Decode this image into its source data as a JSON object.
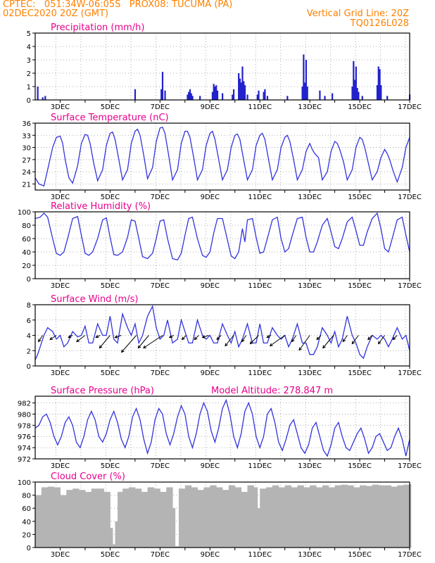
{
  "header": {
    "line1": "CPTEC:   051:34W-06:05S   PROX08: TUCUMA (PA)",
    "line2": "02DEC2020 20Z (GMT)",
    "grid_note": "Vertical Grid Line: 20Z",
    "run_id": "TQ0126L028",
    "color": "#ff8000"
  },
  "colors": {
    "title": "#e8008c",
    "line": "#3333dd",
    "bar": "#2222cc",
    "cloud": "#b4b4b4",
    "axis": "#000000"
  },
  "x_ticks": [
    "3DEC",
    "5DEC",
    "7DEC",
    "9DEC",
    "11DEC",
    "13DEC",
    "15DEC",
    "17DEC"
  ],
  "chart_data": [
    {
      "type": "bar",
      "title": "Precipitation (mm/h)",
      "ylim": [
        0,
        5
      ],
      "yticks": [
        "0",
        "1",
        "2",
        "3",
        "4",
        "5"
      ],
      "x_days": [
        2.1,
        2.3,
        2.4,
        6.0,
        7.05,
        7.1,
        7.2,
        8.1,
        8.15,
        8.2,
        8.25,
        8.3,
        8.6,
        9.1,
        9.15,
        9.2,
        9.25,
        9.3,
        9.5,
        9.9,
        9.95,
        10.15,
        10.2,
        10.25,
        10.3,
        10.35,
        10.4,
        10.5,
        10.9,
        10.95,
        11.15,
        11.2,
        11.3,
        12.1,
        12.7,
        12.75,
        12.8,
        12.85,
        12.9,
        13.4,
        13.6,
        13.9,
        14.7,
        14.75,
        14.8,
        14.85,
        14.9,
        14.95,
        15.1,
        15.7,
        15.75,
        15.8,
        15.85,
        16.1,
        17.0
      ],
      "values": [
        1.0,
        0.2,
        0.3,
        0.8,
        0.8,
        2.1,
        0.7,
        0.4,
        0.6,
        0.8,
        0.5,
        0.3,
        0.3,
        0.6,
        1.2,
        1.0,
        1.1,
        0.7,
        0.5,
        0.4,
        0.8,
        2.0,
        1.6,
        1.3,
        2.5,
        1.4,
        1.1,
        0.4,
        0.4,
        0.7,
        0.6,
        0.8,
        0.3,
        0.3,
        1.0,
        3.4,
        1.3,
        3.0,
        1.0,
        0.7,
        0.3,
        0.5,
        1.0,
        2.9,
        1.5,
        2.5,
        0.9,
        0.6,
        0.3,
        1.1,
        2.5,
        2.3,
        1.1,
        0.3,
        0.4
      ]
    },
    {
      "type": "line",
      "title": "Surface Temperature (nC)",
      "ylim": [
        19.5,
        36
      ],
      "yticks": [
        "21",
        "24",
        "27",
        "30",
        "33",
        "36"
      ],
      "x_days": [
        2.0,
        2.15,
        2.35,
        2.5,
        2.7,
        2.85,
        3.0,
        3.1,
        3.2,
        3.35,
        3.5,
        3.7,
        3.85,
        4.0,
        4.1,
        4.2,
        4.35,
        4.5,
        4.7,
        4.85,
        5.0,
        5.1,
        5.2,
        5.35,
        5.5,
        5.7,
        5.85,
        6.0,
        6.1,
        6.2,
        6.35,
        6.5,
        6.7,
        6.85,
        7.0,
        7.1,
        7.2,
        7.35,
        7.5,
        7.7,
        7.85,
        8.0,
        8.1,
        8.2,
        8.35,
        8.5,
        8.7,
        8.85,
        9.0,
        9.1,
        9.2,
        9.35,
        9.5,
        9.7,
        9.85,
        10.0,
        10.1,
        10.2,
        10.35,
        10.5,
        10.7,
        10.85,
        11.0,
        11.1,
        11.2,
        11.35,
        11.5,
        11.7,
        11.85,
        12.0,
        12.1,
        12.2,
        12.35,
        12.5,
        12.7,
        12.85,
        13.0,
        13.1,
        13.2,
        13.35,
        13.5,
        13.7,
        13.85,
        14.0,
        14.1,
        14.2,
        14.35,
        14.5,
        14.7,
        14.85,
        15.0,
        15.1,
        15.2,
        15.35,
        15.5,
        15.7,
        15.85,
        16.0,
        16.1,
        16.2,
        16.35,
        16.5,
        16.7,
        16.85,
        17.0
      ],
      "values": [
        22.5,
        21.0,
        20.5,
        24.5,
        30.0,
        32.5,
        32.8,
        31.0,
        27.0,
        22.5,
        21.2,
        25.5,
        31.0,
        33.2,
        33.0,
        31.0,
        26.0,
        21.8,
        24.5,
        30.5,
        33.5,
        33.8,
        32.0,
        27.0,
        22.0,
        24.5,
        31.0,
        34.0,
        34.5,
        33.0,
        28.0,
        22.3,
        25.0,
        31.5,
        34.8,
        35.0,
        33.5,
        28.0,
        22.0,
        24.5,
        31.0,
        34.0,
        34.0,
        32.5,
        27.5,
        22.0,
        24.5,
        30.5,
        33.5,
        34.0,
        32.0,
        27.0,
        22.0,
        24.5,
        30.0,
        33.0,
        33.3,
        32.0,
        27.0,
        22.0,
        24.5,
        30.5,
        33.0,
        33.5,
        32.0,
        27.0,
        22.0,
        24.5,
        30.0,
        32.5,
        33.0,
        31.5,
        27.0,
        22.0,
        24.5,
        29.0,
        31.0,
        29.5,
        28.5,
        27.5,
        22.0,
        24.0,
        29.0,
        31.5,
        31.0,
        29.5,
        26.5,
        22.0,
        24.5,
        30.0,
        32.5,
        32.0,
        30.0,
        26.0,
        22.0,
        24.0,
        27.5,
        29.5,
        28.5,
        27.0,
        24.0,
        21.5,
        25.0,
        30.0,
        32.5
      ]
    },
    {
      "type": "line",
      "title": "Relative Humidity (%)",
      "ylim": [
        0,
        100
      ],
      "yticks": [
        "0",
        "20",
        "40",
        "60",
        "80",
        "100"
      ],
      "x_days": [
        2.0,
        2.2,
        2.35,
        2.5,
        2.7,
        2.85,
        3.0,
        3.15,
        3.3,
        3.5,
        3.7,
        3.85,
        4.0,
        4.15,
        4.3,
        4.5,
        4.7,
        4.85,
        5.0,
        5.15,
        5.3,
        5.5,
        5.7,
        5.85,
        6.0,
        6.15,
        6.3,
        6.5,
        6.7,
        6.85,
        7.0,
        7.15,
        7.3,
        7.5,
        7.7,
        7.85,
        8.0,
        8.15,
        8.3,
        8.5,
        8.7,
        8.85,
        9.0,
        9.15,
        9.3,
        9.5,
        9.7,
        9.85,
        10.0,
        10.15,
        10.3,
        10.4,
        10.5,
        10.7,
        10.85,
        11.0,
        11.15,
        11.3,
        11.5,
        11.7,
        11.85,
        12.0,
        12.15,
        12.3,
        12.5,
        12.7,
        12.85,
        13.0,
        13.15,
        13.3,
        13.5,
        13.7,
        13.85,
        14.0,
        14.15,
        14.3,
        14.5,
        14.7,
        14.85,
        15.0,
        15.15,
        15.3,
        15.5,
        15.7,
        15.85,
        16.0,
        16.15,
        16.3,
        16.5,
        16.7,
        16.85,
        17.0
      ],
      "values": [
        90,
        92,
        98,
        92,
        60,
        38,
        35,
        40,
        60,
        90,
        93,
        65,
        38,
        35,
        40,
        60,
        88,
        91,
        62,
        36,
        35,
        40,
        62,
        88,
        86,
        60,
        33,
        30,
        38,
        60,
        86,
        88,
        60,
        30,
        28,
        38,
        65,
        90,
        92,
        60,
        35,
        32,
        40,
        68,
        90,
        90,
        58,
        34,
        30,
        40,
        75,
        55,
        88,
        90,
        62,
        38,
        40,
        60,
        88,
        92,
        60,
        40,
        45,
        65,
        90,
        92,
        62,
        40,
        40,
        55,
        80,
        90,
        70,
        48,
        45,
        60,
        85,
        92,
        72,
        50,
        50,
        70,
        90,
        98,
        75,
        45,
        40,
        60,
        88,
        92,
        65,
        40
      ]
    },
    {
      "type": "line",
      "title": "Surface Wind (m/s)",
      "ylim": [
        0,
        8
      ],
      "yticks": [
        "0",
        "2",
        "4",
        "6",
        "8"
      ],
      "x_days": [
        2.0,
        2.1,
        2.2,
        2.35,
        2.5,
        2.7,
        2.85,
        3.0,
        3.15,
        3.3,
        3.5,
        3.7,
        3.85,
        4.0,
        4.15,
        4.3,
        4.5,
        4.7,
        4.85,
        5.0,
        5.15,
        5.3,
        5.5,
        5.7,
        5.85,
        6.0,
        6.15,
        6.3,
        6.5,
        6.7,
        6.85,
        7.0,
        7.15,
        7.3,
        7.5,
        7.7,
        7.85,
        8.0,
        8.15,
        8.3,
        8.5,
        8.7,
        8.85,
        9.0,
        9.15,
        9.3,
        9.5,
        9.7,
        9.85,
        10.0,
        10.15,
        10.3,
        10.5,
        10.7,
        10.85,
        11.0,
        11.15,
        11.3,
        11.5,
        11.7,
        11.85,
        12.0,
        12.15,
        12.3,
        12.5,
        12.7,
        12.85,
        13.0,
        13.15,
        13.3,
        13.5,
        13.7,
        13.85,
        14.0,
        14.15,
        14.3,
        14.5,
        14.7,
        14.85,
        15.0,
        15.15,
        15.3,
        15.5,
        15.7,
        15.85,
        16.0,
        16.15,
        16.3,
        16.5,
        16.7,
        16.85,
        17.0
      ],
      "values": [
        0.8,
        1.5,
        2.5,
        4.0,
        5.0,
        4.5,
        3.5,
        4.0,
        2.5,
        3.0,
        4.5,
        3.8,
        4.0,
        5.2,
        3.0,
        3.0,
        5.5,
        4.0,
        4.0,
        6.5,
        3.5,
        3.0,
        6.8,
        5.0,
        4.0,
        5.5,
        3.0,
        4.0,
        6.5,
        7.8,
        5.0,
        3.5,
        4.0,
        6.0,
        3.0,
        3.5,
        6.0,
        4.5,
        3.0,
        3.0,
        6.0,
        4.0,
        3.5,
        4.0,
        3.0,
        3.0,
        5.5,
        4.0,
        3.0,
        4.5,
        2.5,
        3.5,
        5.5,
        3.0,
        3.0,
        5.5,
        3.0,
        3.0,
        5.0,
        4.0,
        3.5,
        4.0,
        2.5,
        3.5,
        5.5,
        3.0,
        3.0,
        1.5,
        1.5,
        2.5,
        5.0,
        4.0,
        3.0,
        4.5,
        2.5,
        3.5,
        6.5,
        4.0,
        3.0,
        1.5,
        1.0,
        2.5,
        4.0,
        3.5,
        4.0,
        3.5,
        2.5,
        3.5,
        5.0,
        3.5,
        4.0,
        2.0
      ],
      "vectors": {
        "x_days": [
          2.3,
          2.85,
          3.5,
          4.0,
          4.6,
          5.0,
          5.45,
          6.05,
          6.55,
          7.1,
          7.55,
          8.05,
          8.55,
          8.95,
          9.45,
          9.95,
          10.45,
          10.95,
          11.45,
          12.0,
          12.45,
          13.0,
          13.45,
          13.95,
          14.5,
          14.95,
          15.5,
          16.0,
          16.5
        ],
        "u": [
          -1.0,
          -1.5,
          -1.0,
          -2.0,
          -1.0,
          -2.5,
          -1.5,
          -3.5,
          -2.5,
          -4.5,
          -1.0,
          -1.0,
          -1.0,
          -1.5,
          -1.0,
          -2.0,
          -1.0,
          -2.0,
          -1.0,
          -3.5,
          -1.0,
          -2.5,
          -1.0,
          -2.5,
          -1.0,
          -1.5,
          -1.0,
          -1.5,
          -1.0
        ],
        "v": [
          -1.5,
          -1.0,
          -0.5,
          -1.5,
          -0.5,
          -3.0,
          -0.5,
          -4.0,
          -3.0,
          -3.0,
          -0.5,
          -1.0,
          -1.0,
          -0.5,
          -1.0,
          -2.5,
          -1.5,
          -2.0,
          -0.5,
          -2.5,
          -1.5,
          -3.5,
          -1.0,
          -3.0,
          -1.5,
          -2.0,
          -1.0,
          -2.0,
          -1.0
        ]
      }
    },
    {
      "type": "line",
      "title": "Surface Pressure (hPa)",
      "annotation": "Model Altitude: 278.847 m",
      "ylim": [
        972,
        983.2
      ],
      "yticks": [
        "972",
        "974",
        "976",
        "978",
        "980",
        "982"
      ],
      "x_days": [
        2.0,
        2.15,
        2.3,
        2.45,
        2.6,
        2.75,
        2.9,
        3.05,
        3.2,
        3.35,
        3.5,
        3.65,
        3.8,
        3.95,
        4.1,
        4.25,
        4.4,
        4.55,
        4.7,
        4.85,
        5.0,
        5.15,
        5.3,
        5.45,
        5.6,
        5.75,
        5.9,
        6.05,
        6.2,
        6.35,
        6.5,
        6.65,
        6.8,
        6.95,
        7.1,
        7.25,
        7.4,
        7.55,
        7.7,
        7.85,
        8.0,
        8.15,
        8.3,
        8.45,
        8.6,
        8.75,
        8.9,
        9.05,
        9.2,
        9.35,
        9.5,
        9.65,
        9.8,
        9.95,
        10.1,
        10.25,
        10.4,
        10.55,
        10.7,
        10.85,
        11.0,
        11.15,
        11.3,
        11.45,
        11.6,
        11.75,
        11.9,
        12.05,
        12.2,
        12.35,
        12.5,
        12.65,
        12.8,
        12.95,
        13.1,
        13.25,
        13.4,
        13.55,
        13.7,
        13.85,
        14.0,
        14.15,
        14.3,
        14.45,
        14.6,
        14.75,
        14.9,
        15.05,
        15.2,
        15.35,
        15.5,
        15.65,
        15.8,
        15.95,
        16.1,
        16.25,
        16.4,
        16.55,
        16.7,
        16.85,
        17.0
      ],
      "values": [
        977.5,
        978.0,
        979.5,
        980.0,
        978.5,
        976.0,
        974.5,
        976.0,
        978.5,
        979.5,
        978.0,
        975.0,
        974.0,
        976.0,
        979.0,
        980.5,
        979.0,
        976.0,
        975.0,
        976.5,
        979.0,
        980.5,
        978.5,
        975.5,
        974.0,
        976.0,
        979.5,
        981.0,
        979.0,
        975.5,
        973.0,
        975.0,
        979.0,
        981.0,
        980.0,
        976.5,
        974.5,
        976.5,
        979.5,
        981.5,
        980.0,
        976.0,
        974.0,
        976.5,
        980.0,
        982.0,
        980.5,
        977.0,
        975.0,
        977.5,
        981.0,
        982.5,
        980.0,
        976.0,
        974.0,
        976.5,
        980.5,
        982.0,
        980.0,
        976.0,
        974.0,
        976.0,
        980.0,
        981.0,
        978.5,
        975.0,
        973.5,
        975.5,
        978.0,
        979.0,
        976.5,
        974.0,
        973.0,
        974.5,
        977.5,
        978.5,
        976.0,
        973.5,
        972.5,
        974.5,
        977.5,
        978.5,
        976.0,
        974.0,
        973.5,
        975.0,
        976.5,
        977.5,
        975.5,
        973.0,
        974.0,
        976.0,
        976.5,
        975.0,
        973.5,
        974.0,
        976.0,
        977.5,
        975.5,
        972.5,
        975.5
      ]
    },
    {
      "type": "bar",
      "title": "Cloud Cover (%)",
      "ylim": [
        0,
        100
      ],
      "yticks": [
        "0",
        "20",
        "40",
        "60",
        "80",
        "100"
      ],
      "x_days": [
        2.0,
        2.25,
        2.5,
        2.75,
        3.0,
        3.25,
        3.5,
        3.75,
        4.0,
        4.25,
        4.5,
        4.75,
        5.0,
        5.1,
        5.2,
        5.3,
        5.5,
        5.75,
        6.0,
        6.25,
        6.5,
        6.75,
        7.0,
        7.25,
        7.5,
        7.6,
        7.75,
        8.0,
        8.25,
        8.5,
        8.75,
        9.0,
        9.25,
        9.5,
        9.75,
        10.0,
        10.25,
        10.5,
        10.75,
        10.9,
        11.0,
        11.25,
        11.5,
        11.75,
        12.0,
        12.25,
        12.5,
        12.75,
        13.0,
        13.25,
        13.5,
        13.75,
        14.0,
        14.25,
        14.5,
        14.75,
        15.0,
        15.25,
        15.5,
        15.75,
        16.0,
        16.25,
        16.5,
        16.75,
        17.0
      ],
      "values": [
        80,
        92,
        93,
        92,
        80,
        88,
        90,
        88,
        85,
        90,
        90,
        85,
        30,
        5,
        40,
        85,
        90,
        92,
        90,
        85,
        92,
        90,
        85,
        92,
        60,
        2,
        90,
        95,
        92,
        88,
        92,
        95,
        92,
        88,
        95,
        92,
        85,
        95,
        92,
        60,
        90,
        92,
        95,
        92,
        95,
        92,
        95,
        92,
        95,
        92,
        95,
        92,
        95,
        96,
        95,
        92,
        95,
        94,
        96,
        95,
        95,
        93,
        95,
        96,
        97
      ]
    }
  ]
}
